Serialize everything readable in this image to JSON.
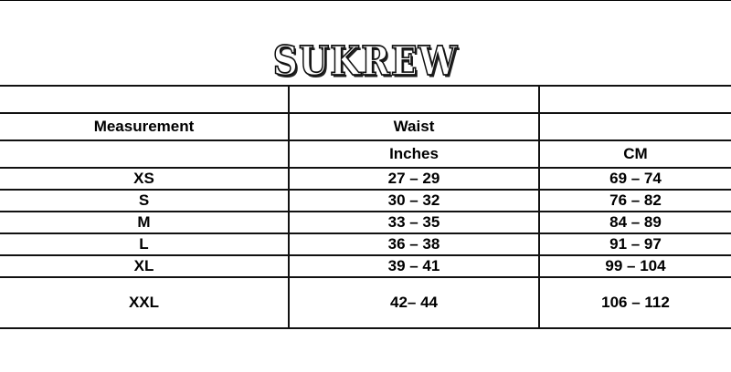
{
  "brand": "SUKREW",
  "header": {
    "measurement": "Measurement",
    "waist": "Waist",
    "inches": "Inches",
    "cm": "CM"
  },
  "rows": [
    {
      "size": "XS",
      "inches": "27 – 29",
      "cm": "69 – 74"
    },
    {
      "size": "S",
      "inches": "30 – 32",
      "cm": "76 – 82"
    },
    {
      "size": "M",
      "inches": "33 – 35",
      "cm": "84 – 89"
    },
    {
      "size": "L",
      "inches": "36 – 38",
      "cm": "91 – 97"
    },
    {
      "size": "XL",
      "inches": "39 – 41",
      "cm": "99 – 104"
    },
    {
      "size": "XXL",
      "inches": "42– 44",
      "cm": "106 – 112"
    }
  ]
}
